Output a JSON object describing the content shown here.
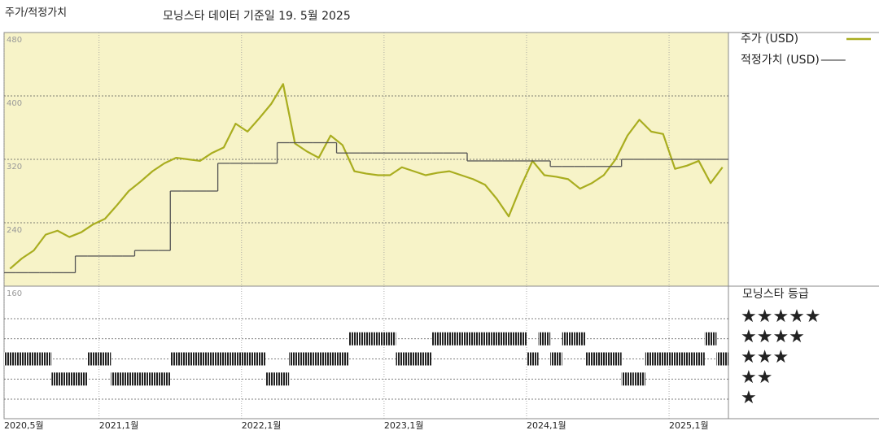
{
  "chart_data": {
    "type": "line",
    "title": "주가/적정가치",
    "subtitle": "모닝스타 데이터 기준일 19. 5월 2025",
    "x": [
      "2020-05",
      "2020-06",
      "2020-07",
      "2020-08",
      "2020-09",
      "2020-10",
      "2020-11",
      "2020-12",
      "2021-01",
      "2021-02",
      "2021-03",
      "2021-04",
      "2021-05",
      "2021-06",
      "2021-07",
      "2021-08",
      "2021-09",
      "2021-10",
      "2021-11",
      "2021-12",
      "2022-01",
      "2022-02",
      "2022-03",
      "2022-04",
      "2022-05",
      "2022-06",
      "2022-07",
      "2022-08",
      "2022-09",
      "2022-10",
      "2022-11",
      "2022-12",
      "2023-01",
      "2023-02",
      "2023-03",
      "2023-04",
      "2023-05",
      "2023-06",
      "2023-07",
      "2023-08",
      "2023-09",
      "2023-10",
      "2023-11",
      "2023-12",
      "2024-01",
      "2024-02",
      "2024-03",
      "2024-04",
      "2024-05",
      "2024-06",
      "2024-07",
      "2024-08",
      "2024-09",
      "2024-10",
      "2024-11",
      "2024-12",
      "2025-01",
      "2025-02",
      "2025-03",
      "2025-04",
      "2025-05"
    ],
    "series": [
      {
        "name": "주가 (USD)",
        "color": "#a9ad1f",
        "style": "line",
        "values": [
          182,
          195,
          205,
          225,
          230,
          222,
          228,
          238,
          245,
          262,
          280,
          292,
          305,
          315,
          322,
          320,
          318,
          328,
          335,
          365,
          355,
          372,
          390,
          415,
          340,
          330,
          322,
          350,
          338,
          305,
          302,
          300,
          300,
          310,
          305,
          300,
          303,
          305,
          300,
          295,
          288,
          270,
          248,
          285,
          318,
          300,
          298,
          295,
          283,
          290,
          300,
          320,
          350,
          370,
          355,
          352,
          308,
          312,
          318,
          290,
          310
        ]
      },
      {
        "name": "적정가치 (USD)",
        "color": "#555555",
        "style": "step",
        "values": [
          177,
          177,
          177,
          177,
          177,
          177,
          198,
          198,
          198,
          198,
          198,
          205,
          205,
          205,
          280,
          280,
          280,
          280,
          315,
          315,
          315,
          315,
          315,
          341,
          341,
          341,
          341,
          341,
          328,
          328,
          328,
          328,
          328,
          328,
          328,
          328,
          328,
          328,
          328,
          318,
          318,
          318,
          318,
          318,
          318,
          318,
          311,
          311,
          311,
          311,
          311,
          311,
          320,
          320,
          320,
          320,
          320,
          320,
          320,
          320,
          320
        ]
      }
    ],
    "ylim": [
      160,
      480
    ],
    "yticks": [
      160,
      240,
      320,
      400,
      480
    ],
    "xticks": [
      {
        "value": "2020-05",
        "label": "2020,5월"
      },
      {
        "value": "2021-01",
        "label": "2021,1월"
      },
      {
        "value": "2022-01",
        "label": "2022,1월"
      },
      {
        "value": "2023-01",
        "label": "2023,1월"
      },
      {
        "value": "2024-01",
        "label": "2024,1월"
      },
      {
        "value": "2025-01",
        "label": "2025,1월"
      }
    ],
    "ratings": {
      "name": "모닝스타 등급",
      "levels": [
        5,
        4,
        3,
        2,
        1
      ],
      "labels": [
        "★★★★★",
        "★★★★",
        "★★★",
        "★★",
        "★"
      ],
      "values": [
        3,
        3,
        3,
        3,
        2,
        2,
        2,
        3,
        3,
        2,
        2,
        2,
        2,
        2,
        3,
        3,
        3,
        3,
        3,
        3,
        3,
        3,
        2,
        2,
        3,
        3,
        3,
        3,
        3,
        4,
        4,
        4,
        4,
        3,
        3,
        3,
        4,
        4,
        4,
        4,
        4,
        4,
        4,
        4,
        3,
        4,
        3,
        4,
        4,
        3,
        3,
        3,
        2,
        2,
        3,
        3,
        3,
        3,
        3,
        4,
        3
      ]
    }
  }
}
